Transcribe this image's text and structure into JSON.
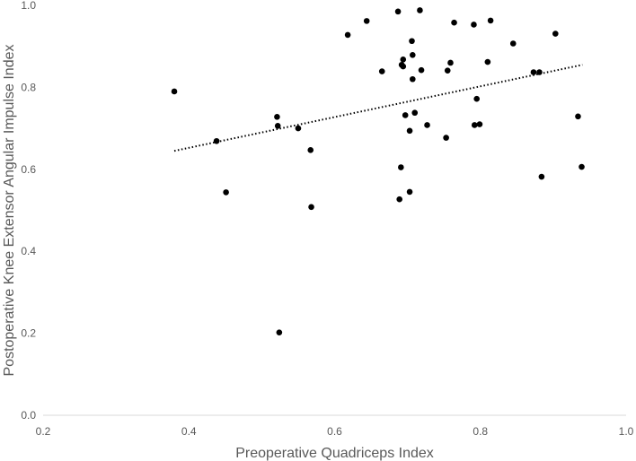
{
  "chart_data": {
    "type": "scatter",
    "title": "",
    "xlabel": "Preoperative Quadriceps Index",
    "ylabel": "Postoperative Knee Extensor Angular Impulse  Index",
    "xlim": [
      0.2,
      1.0
    ],
    "ylim": [
      0.0,
      1.0
    ],
    "xticks": [
      "0.2",
      "0.4",
      "0.6",
      "0.8",
      "1.0"
    ],
    "yticks": [
      "0.0",
      "0.2",
      "0.4",
      "0.6",
      "0.8",
      "1.0"
    ],
    "grid": false,
    "legend": "none",
    "marker_color": "#000000",
    "series": [
      {
        "points": [
          [
            0.38,
            0.79
          ],
          [
            0.438,
            0.669
          ],
          [
            0.451,
            0.544
          ],
          [
            0.521,
            0.728
          ],
          [
            0.522,
            0.706
          ],
          [
            0.524,
            0.202
          ],
          [
            0.55,
            0.7
          ],
          [
            0.567,
            0.647
          ],
          [
            0.568,
            0.508
          ],
          [
            0.618,
            0.928
          ],
          [
            0.644,
            0.962
          ],
          [
            0.665,
            0.839
          ],
          [
            0.687,
            0.985
          ],
          [
            0.689,
            0.527
          ],
          [
            0.691,
            0.605
          ],
          [
            0.692,
            0.855
          ],
          [
            0.694,
            0.868
          ],
          [
            0.694,
            0.851
          ],
          [
            0.697,
            0.732
          ],
          [
            0.703,
            0.545
          ],
          [
            0.703,
            0.694
          ],
          [
            0.706,
            0.913
          ],
          [
            0.707,
            0.879
          ],
          [
            0.707,
            0.82
          ],
          [
            0.71,
            0.738
          ],
          [
            0.717,
            0.988
          ],
          [
            0.719,
            0.842
          ],
          [
            0.727,
            0.708
          ],
          [
            0.753,
            0.677
          ],
          [
            0.755,
            0.841
          ],
          [
            0.759,
            0.86
          ],
          [
            0.764,
            0.958
          ],
          [
            0.791,
            0.953
          ],
          [
            0.792,
            0.708
          ],
          [
            0.795,
            0.772
          ],
          [
            0.799,
            0.71
          ],
          [
            0.81,
            0.862
          ],
          [
            0.814,
            0.963
          ],
          [
            0.845,
            0.907
          ],
          [
            0.873,
            0.837
          ],
          [
            0.881,
            0.837
          ],
          [
            0.884,
            0.582
          ],
          [
            0.903,
            0.931
          ],
          [
            0.934,
            0.729
          ],
          [
            0.939,
            0.606
          ]
        ]
      }
    ],
    "trendline": {
      "style": "dotted",
      "color": "#000000",
      "x": [
        0.38,
        0.94
      ],
      "y": [
        0.645,
        0.855
      ]
    }
  }
}
